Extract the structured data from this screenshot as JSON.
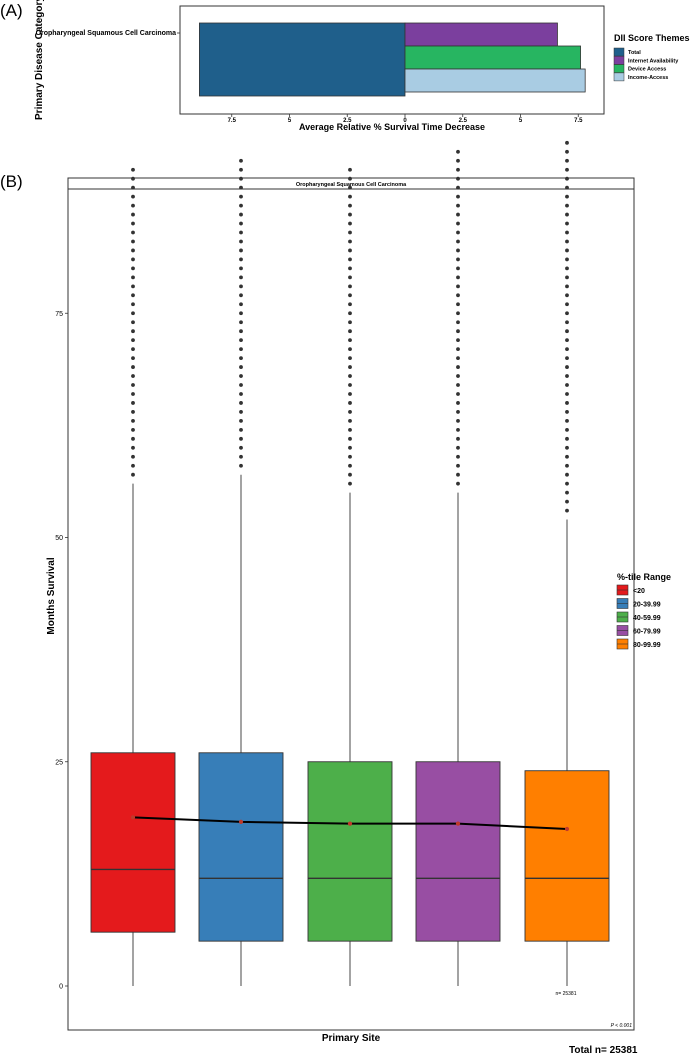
{
  "panels": {
    "a_label": "(A)",
    "b_label": "(B)"
  },
  "chart_data": [
    {
      "type": "bar",
      "orientation": "horizontal",
      "panel": "(A)",
      "ylabel": "Primary Disease Category",
      "xlabel": "Average Relative % Survival Time Decrease",
      "categories": [
        "Oropharyngeal Squamous Cell Carcinoma"
      ],
      "xlim": [
        -9,
        8
      ],
      "x_ticks": [
        -7.5,
        -5,
        -2.5,
        0,
        2.5,
        5,
        7.5
      ],
      "x_tick_labels": [
        "7.5",
        "5",
        "2.5",
        "0",
        "2.5",
        "5",
        "7.5"
      ],
      "legend_title": "DII Score Themes",
      "legend_position": "right",
      "series": [
        {
          "name": "Total",
          "color": "#1f5f8b",
          "values": [
            -8.9
          ]
        },
        {
          "name": "Internet Availability",
          "color": "#7b3f9e",
          "values": [
            6.6
          ]
        },
        {
          "name": "Device Access",
          "color": "#27b561",
          "values": [
            7.6
          ]
        },
        {
          "name": "Income-Access",
          "color": "#a9cce3",
          "values": [
            7.8
          ]
        }
      ]
    },
    {
      "type": "box",
      "panel": "(B)",
      "facet_title": "Oropharyngeal Squamous Cell Carcinoma",
      "xlabel": "Primary Site",
      "ylabel": "Months Survival",
      "ylim": [
        0,
        95
      ],
      "y_ticks": [
        0,
        25,
        50,
        75
      ],
      "legend_title": "%-tile Range",
      "legend_position": "right",
      "groups": [
        {
          "name": "<20",
          "color": "#e41a1c",
          "q1": 6,
          "median": 13,
          "q3": 26,
          "whisker_low": 0,
          "whisker_high": 56,
          "mean": 18.8,
          "outlier_min": 57,
          "outlier_max": 91.5
        },
        {
          "name": "20-39.99",
          "color": "#377eb8",
          "q1": 5,
          "median": 12,
          "q3": 26,
          "whisker_low": 0,
          "whisker_high": 57,
          "mean": 18.3,
          "outlier_min": 58,
          "outlier_max": 92.5
        },
        {
          "name": "40-59.99",
          "color": "#4daf4a",
          "q1": 5,
          "median": 12,
          "q3": 25,
          "whisker_low": 0,
          "whisker_high": 55,
          "mean": 18.1,
          "outlier_min": 56,
          "outlier_max": 91.5
        },
        {
          "name": "60-79.99",
          "color": "#984ea3",
          "q1": 5,
          "median": 12,
          "q3": 25,
          "whisker_low": 0,
          "whisker_high": 55,
          "mean": 18.1,
          "outlier_min": 56,
          "outlier_max": 93.5
        },
        {
          "name": "80-99.99",
          "color": "#ff7f00",
          "q1": 5,
          "median": 12,
          "q3": 24,
          "whisker_low": 0,
          "whisker_high": 52,
          "mean": 17.5,
          "outlier_min": 53,
          "outlier_max": 94.5
        }
      ],
      "annotations": {
        "n_label": "n= 25381",
        "p_label": "P < 0.001",
        "total_label": "Total n= 25381"
      }
    }
  ]
}
